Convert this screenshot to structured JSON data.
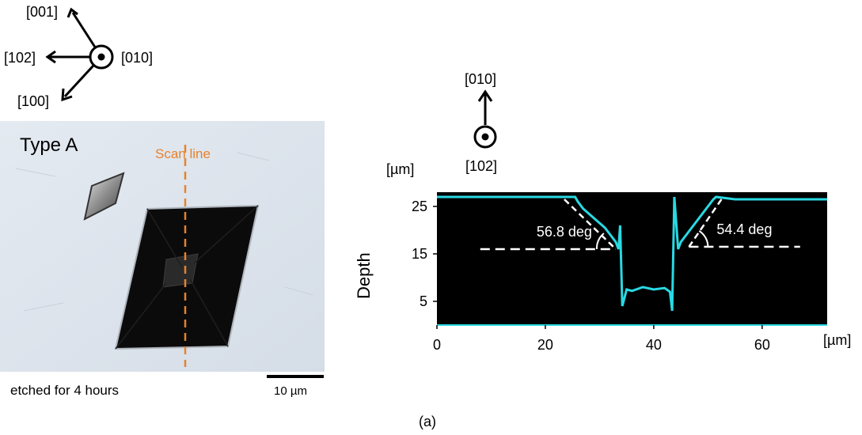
{
  "orientation_top": {
    "labels": {
      "up": "[001]",
      "left": "[102]",
      "out_of_plane": "[010]",
      "down_left": "[100]"
    }
  },
  "orientation_right": {
    "labels": {
      "up": "[010]",
      "out_of_plane": "[102]"
    }
  },
  "micrograph": {
    "type_label": "Type A",
    "scan_label": "Scan line",
    "scan_color": "#e8822c",
    "caption": "etched for 4 hours",
    "scale_bar": "10 µm"
  },
  "chart_data": {
    "type": "line",
    "ylabel": "Depth",
    "y_unit": "[µm]",
    "x_unit": "[µm]",
    "xlim": [
      0,
      72
    ],
    "ylim": [
      0,
      28
    ],
    "x_ticks": [
      0,
      20,
      40,
      60
    ],
    "y_ticks": [
      5,
      15,
      25
    ],
    "y_tick_labels": [
      "5",
      "15",
      "25"
    ],
    "x_tick_labels": [
      "0",
      "20",
      "40",
      "60"
    ],
    "series_color": "#29d9e3",
    "background": "#000000",
    "profile": {
      "x": [
        0,
        25.5,
        26,
        27,
        28,
        29,
        30,
        31,
        32,
        33,
        33.5,
        33.8,
        34.2,
        35,
        36,
        38,
        40,
        42,
        43,
        43.4,
        43.8,
        44.5,
        45,
        46,
        47,
        48,
        49,
        50,
        51,
        51.5,
        55,
        72
      ],
      "y": [
        27,
        27,
        26,
        24.5,
        23.5,
        22.5,
        21.5,
        20.5,
        19,
        17.5,
        16,
        21,
        4,
        7.5,
        7.2,
        8,
        7.5,
        7.8,
        7,
        3,
        27,
        16,
        17.5,
        19,
        20.5,
        22,
        23.5,
        25,
        26.5,
        27,
        26.5,
        26.5
      ]
    },
    "baseline_left": 16,
    "baseline_right": 16.5,
    "annotations": [
      {
        "text": "56.8 deg",
        "x": 33,
        "y": 16
      },
      {
        "text": "54.4 deg",
        "x": 46.5,
        "y": 16.5
      }
    ]
  },
  "panel_label": "(a)"
}
